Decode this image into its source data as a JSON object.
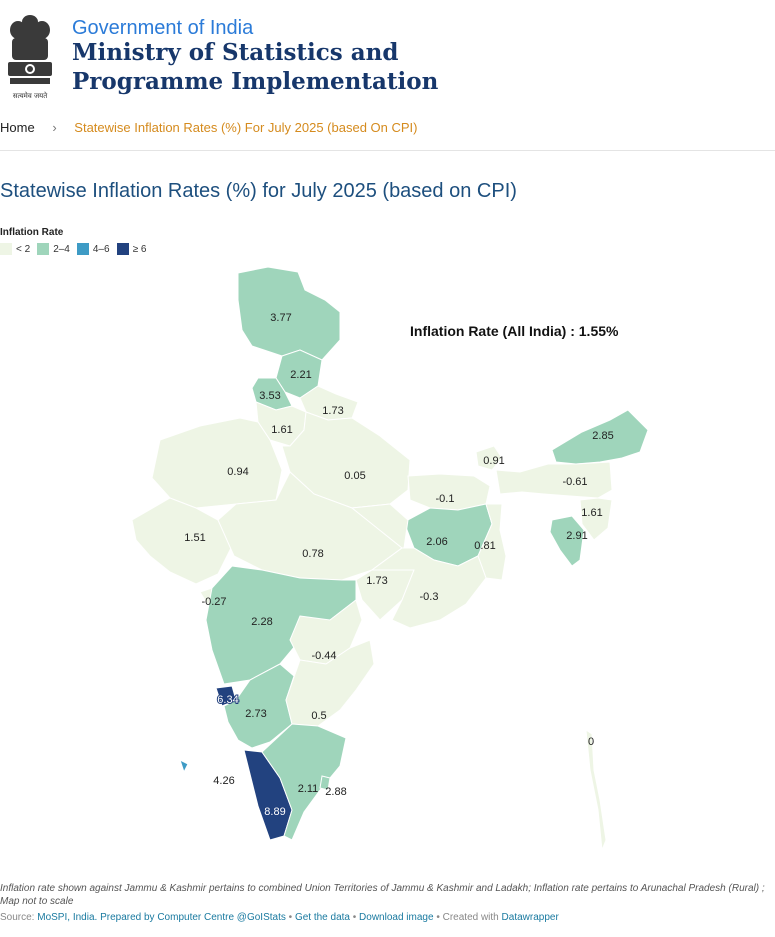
{
  "header": {
    "gov_label": "Government of India",
    "ministry_line1": "Ministry of Statistics and",
    "ministry_line2": "Programme Implementation",
    "emblem_motto": "सत्यमेव जयते",
    "emblem_icon": "national-emblem-icon"
  },
  "breadcrumb": {
    "home": "Home",
    "separator_icon": "chevron-right-icon",
    "current": "Statewise Inflation Rates (%) For July 2025 (based On CPI)"
  },
  "page": {
    "title": "Statewise Inflation Rates (%) for July 2025 (based on CPI)"
  },
  "legend": {
    "title": "Inflation Rate",
    "items": [
      {
        "label": "< 2",
        "color": "#eef5e5"
      },
      {
        "label": "2–4",
        "color": "#9fd5bb"
      },
      {
        "label": "4–6",
        "color": "#3e9bc5"
      },
      {
        "label": "≥ 6",
        "color": "#22427f"
      }
    ]
  },
  "map": {
    "annotation": "Inflation Rate (All India) : 1.55%",
    "regions": [
      {
        "name": "Jammu & Kashmir and Ladakh",
        "value": "3.77",
        "bin": 1
      },
      {
        "name": "Himachal Pradesh",
        "value": "2.21",
        "bin": 1
      },
      {
        "name": "Punjab",
        "value": "3.53",
        "bin": 1
      },
      {
        "name": "Uttarakhand",
        "value": "1.73",
        "bin": 0
      },
      {
        "name": "Haryana",
        "value": "1.61",
        "bin": 0
      },
      {
        "name": "Rajasthan",
        "value": "0.94",
        "bin": 0
      },
      {
        "name": "Uttar Pradesh",
        "value": "0.05",
        "bin": 0
      },
      {
        "name": "Sikkim",
        "value": "0.91",
        "bin": 0
      },
      {
        "name": "Arunachal Pradesh",
        "value": "2.85",
        "bin": 1
      },
      {
        "name": "Assam",
        "value": "-0.61",
        "bin": 0
      },
      {
        "name": "Bihar",
        "value": "-0.1",
        "bin": 0
      },
      {
        "name": "Mizoram",
        "value": "1.61",
        "bin": 0
      },
      {
        "name": "Tripura",
        "value": "2.91",
        "bin": 1
      },
      {
        "name": "Gujarat",
        "value": "1.51",
        "bin": 0
      },
      {
        "name": "Madhya Pradesh",
        "value": "0.78",
        "bin": 0
      },
      {
        "name": "Jharkhand",
        "value": "2.06",
        "bin": 1
      },
      {
        "name": "West Bengal",
        "value": "0.81",
        "bin": 0
      },
      {
        "name": "Chhattisgarh",
        "value": "1.73",
        "bin": 0
      },
      {
        "name": "Odisha",
        "value": "-0.3",
        "bin": 0
      },
      {
        "name": "Dadra & Nagar Haveli and Daman & Diu",
        "value": "-0.27",
        "bin": 0
      },
      {
        "name": "Maharashtra",
        "value": "2.28",
        "bin": 1
      },
      {
        "name": "Telangana",
        "value": "-0.44",
        "bin": 0
      },
      {
        "name": "Goa",
        "value": "6.34",
        "bin": 3
      },
      {
        "name": "Karnataka",
        "value": "2.73",
        "bin": 1
      },
      {
        "name": "Andhra Pradesh",
        "value": "0.5",
        "bin": 0
      },
      {
        "name": "Lakshadweep",
        "value": "4.26",
        "bin": 2
      },
      {
        "name": "Kerala",
        "value": "8.89",
        "bin": 3
      },
      {
        "name": "Tamil Nadu",
        "value": "2.11",
        "bin": 1
      },
      {
        "name": "Puducherry",
        "value": "2.88",
        "bin": 1
      },
      {
        "name": "Andaman & Nicobar Islands",
        "value": "0",
        "bin": 0
      }
    ]
  },
  "footnote": "Inflation rate shown against Jammu & Kashmir pertains to combined Union Territories of Jammu & Kashmir and Ladakh; Inflation rate pertains to Arunachal Pradesh (Rural) ; Map not to scale",
  "source": {
    "prefix": "Source: ",
    "source_link": "MoSPI, India",
    "prepared": "Prepared by Computer Centre @GoIStats",
    "get_data": "Get the data",
    "download": "Download image",
    "created_prefix": "Created with ",
    "created_link": "Datawrapper",
    "dot": " • ",
    "period": ". "
  }
}
